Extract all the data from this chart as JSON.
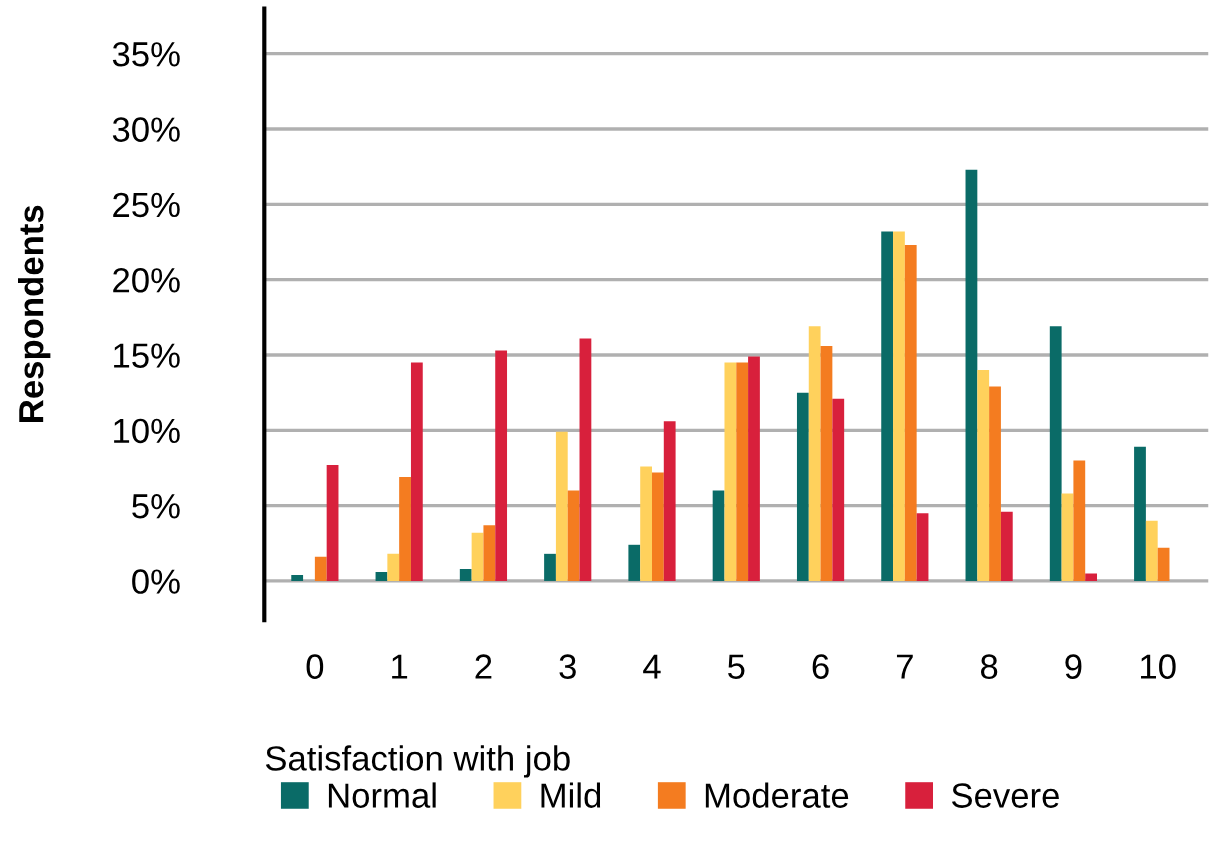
{
  "chart_data": {
    "type": "bar",
    "xlabel": "Satisfaction with job",
    "ylabel": "Respondents",
    "categories": [
      "0",
      "1",
      "2",
      "3",
      "4",
      "5",
      "6",
      "7",
      "8",
      "9",
      "10"
    ],
    "series": [
      {
        "name": "Normal",
        "color": "#0a6b67",
        "values": [
          0.4,
          0.6,
          0.8,
          1.8,
          2.4,
          6.0,
          12.5,
          23.2,
          27.3,
          16.9,
          8.9
        ]
      },
      {
        "name": "Mild",
        "color": "#ffd15c",
        "values": [
          0,
          1.8,
          3.2,
          9.9,
          7.6,
          14.5,
          16.9,
          23.2,
          14.0,
          5.8,
          4.0
        ]
      },
      {
        "name": "Moderate",
        "color": "#f47c20",
        "values": [
          1.6,
          6.9,
          3.7,
          6.0,
          7.2,
          14.5,
          15.6,
          22.3,
          12.9,
          8.0,
          2.2
        ]
      },
      {
        "name": "Severe",
        "color": "#d8203c",
        "values": [
          7.7,
          14.5,
          15.3,
          16.1,
          10.6,
          14.9,
          12.1,
          4.5,
          4.6,
          0.5,
          0
        ]
      }
    ],
    "ylim": [
      -2.6,
      38
    ],
    "yticks": [
      {
        "value": 0,
        "label": "0%"
      },
      {
        "value": 5,
        "label": "5%"
      },
      {
        "value": 10,
        "label": "10%"
      },
      {
        "value": 15,
        "label": "15%"
      },
      {
        "value": 20,
        "label": "20%"
      },
      {
        "value": 25,
        "label": "25%"
      },
      {
        "value": 30,
        "label": "30%"
      },
      {
        "value": 35,
        "label": "35%"
      }
    ],
    "grid": "y",
    "legend": "bottom"
  }
}
